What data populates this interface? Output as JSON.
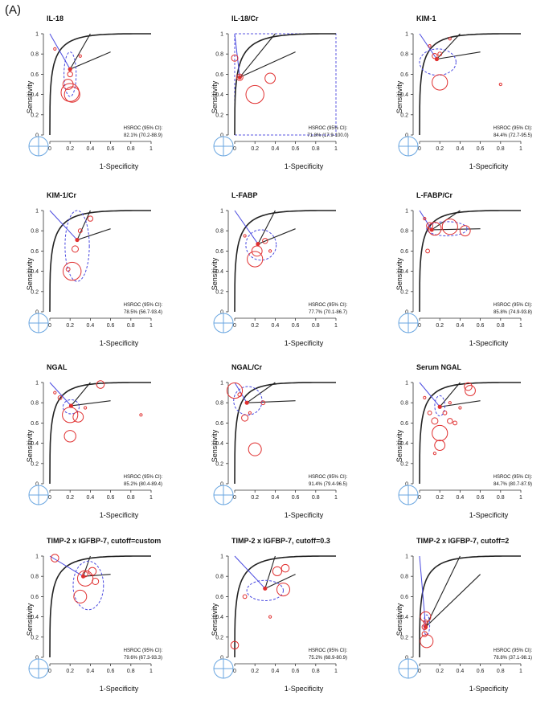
{
  "figure_label": "(A)",
  "axis_labels": {
    "x": "1-Specificity",
    "y": "Sensitivity"
  },
  "ticks": [
    "0",
    "0.2",
    "0.4",
    "0.6",
    "0.8",
    "1"
  ],
  "chart_data": [
    {
      "type": "scatter",
      "title": "IL-18",
      "xlabel": "1-Specificity",
      "ylabel": "Sensitivity",
      "hsroc_label": "HSROC (95% CI):",
      "hsroc_value": "82.1% (70.2-88.9)",
      "summary": [
        0.2,
        0.65
      ],
      "curve_k": 0.82,
      "conf": [
        0.2,
        0.6,
        0.06,
        0.22
      ],
      "pts": [
        [
          0.2,
          0.42,
          1.4
        ],
        [
          0.22,
          0.4,
          1.2
        ],
        [
          0.18,
          0.5,
          0.8
        ],
        [
          0.2,
          0.6,
          0.4
        ],
        [
          0.05,
          0.85,
          0.2
        ],
        [
          0.3,
          0.78,
          0.2
        ]
      ]
    },
    {
      "type": "scatter",
      "title": "IL-18/Cr",
      "xlabel": "1-Specificity",
      "ylabel": "Sensitivity",
      "hsroc_label": "HSROC (95% CI):",
      "hsroc_value": "71.8% (17.9-100.0)",
      "summary": [
        0.05,
        0.57
      ],
      "curve_k": 0.72,
      "box": true,
      "pts": [
        [
          0.2,
          0.4,
          1.4
        ],
        [
          0.35,
          0.56,
          0.8
        ],
        [
          0.0,
          0.76,
          0.5
        ],
        [
          0.05,
          0.57,
          0.5
        ]
      ]
    },
    {
      "type": "scatter",
      "title": "KIM-1",
      "xlabel": "1-Specificity",
      "ylabel": "Sensitivity",
      "hsroc_label": "HSROC (95% CI):",
      "hsroc_value": "84.4% (72.7-95.5)",
      "summary": [
        0.17,
        0.75
      ],
      "curve_k": 0.84,
      "conf": [
        0.18,
        0.72,
        0.18,
        0.13
      ],
      "pts": [
        [
          0.2,
          0.52,
          1.2
        ],
        [
          0.15,
          0.78,
          0.4
        ],
        [
          0.2,
          0.8,
          0.3
        ],
        [
          0.1,
          0.88,
          0.2
        ],
        [
          0.8,
          0.5,
          0.2
        ],
        [
          0.3,
          0.95,
          0.2
        ]
      ]
    },
    {
      "type": "scatter",
      "title": "KIM-1/Cr",
      "xlabel": "1-Specificity",
      "ylabel": "Sensitivity",
      "hsroc_label": "HSROC (95% CI):",
      "hsroc_value": "78.5% (56.7-93.4)",
      "summary": [
        0.27,
        0.71
      ],
      "curve_k": 0.78,
      "conf": [
        0.27,
        0.65,
        0.12,
        0.35
      ],
      "pts": [
        [
          0.22,
          0.4,
          1.4
        ],
        [
          0.25,
          0.62,
          0.5
        ],
        [
          0.4,
          0.92,
          0.4
        ],
        [
          0.18,
          0.42,
          0.3
        ],
        [
          0.3,
          0.8,
          0.3
        ]
      ]
    },
    {
      "type": "scatter",
      "title": "L-FABP",
      "xlabel": "1-Specificity",
      "ylabel": "Sensitivity",
      "hsroc_label": "HSROC (95% CI):",
      "hsroc_value": "77.7% (70.1-86.7)",
      "summary": [
        0.23,
        0.67
      ],
      "curve_k": 0.78,
      "conf": [
        0.26,
        0.66,
        0.15,
        0.15
      ],
      "pts": [
        [
          0.2,
          0.52,
          1.2
        ],
        [
          0.22,
          0.6,
          0.8
        ],
        [
          0.3,
          0.7,
          0.4
        ],
        [
          0.35,
          0.6,
          0.2
        ],
        [
          0.1,
          0.75,
          0.2
        ]
      ]
    },
    {
      "type": "scatter",
      "title": "L-FABP/Cr",
      "xlabel": "1-Specificity",
      "ylabel": "Sensitivity",
      "hsroc_label": "HSROC (95% CI):",
      "hsroc_value": "85.8% (74.9-93.8)",
      "summary": [
        0.12,
        0.81
      ],
      "curve_k": 0.86,
      "conf": [
        0.27,
        0.82,
        0.2,
        0.07
      ],
      "pts": [
        [
          0.3,
          0.84,
          1.2
        ],
        [
          0.15,
          0.82,
          1.0
        ],
        [
          0.45,
          0.8,
          0.8
        ],
        [
          0.1,
          0.85,
          0.5
        ],
        [
          0.08,
          0.6,
          0.3
        ],
        [
          0.05,
          0.92,
          0.2
        ]
      ]
    },
    {
      "type": "scatter",
      "title": "NGAL",
      "xlabel": "1-Specificity",
      "ylabel": "Sensitivity",
      "hsroc_label": "HSROC (95% CI):",
      "hsroc_value": "85.2% (80.4-89.4)",
      "summary": [
        0.21,
        0.77
      ],
      "curve_k": 0.85,
      "conf": [
        0.21,
        0.76,
        0.08,
        0.07
      ],
      "pts": [
        [
          0.2,
          0.68,
          1.2
        ],
        [
          0.2,
          0.47,
          0.9
        ],
        [
          0.28,
          0.66,
          0.8
        ],
        [
          0.5,
          0.98,
          0.6
        ],
        [
          0.1,
          0.85,
          0.3
        ],
        [
          0.35,
          0.75,
          0.2
        ],
        [
          0.9,
          0.68,
          0.2
        ],
        [
          0.05,
          0.9,
          0.2
        ]
      ]
    },
    {
      "type": "scatter",
      "title": "NGAL/Cr",
      "xlabel": "1-Specificity",
      "ylabel": "Sensitivity",
      "hsroc_label": "HSROC (95% CI):",
      "hsroc_value": "91.4% (79.4-96.5)",
      "summary": [
        0.12,
        0.8
      ],
      "curve_k": 0.91,
      "conf": [
        0.13,
        0.82,
        0.14,
        0.14
      ],
      "pts": [
        [
          0.0,
          0.92,
          1.2
        ],
        [
          0.2,
          0.34,
          1.0
        ],
        [
          0.1,
          0.65,
          0.5
        ],
        [
          0.28,
          0.8,
          0.3
        ],
        [
          0.05,
          0.88,
          0.3
        ],
        [
          0.15,
          0.7,
          0.2
        ]
      ]
    },
    {
      "type": "scatter",
      "title": "Serum NGAL",
      "xlabel": "1-Specificity",
      "ylabel": "Sensitivity",
      "hsroc_label": "HSROC (95% CI):",
      "hsroc_value": "84.7% (80.7-87.9)",
      "summary": [
        0.2,
        0.76
      ],
      "curve_k": 0.85,
      "conf": [
        0.2,
        0.77,
        0.05,
        0.1
      ],
      "pts": [
        [
          0.2,
          0.5,
          1.2
        ],
        [
          0.2,
          0.38,
          0.8
        ],
        [
          0.5,
          0.92,
          0.8
        ],
        [
          0.48,
          0.96,
          0.6
        ],
        [
          0.15,
          0.62,
          0.5
        ],
        [
          0.3,
          0.62,
          0.4
        ],
        [
          0.25,
          0.7,
          0.3
        ],
        [
          0.35,
          0.6,
          0.3
        ],
        [
          0.1,
          0.7,
          0.3
        ],
        [
          0.4,
          0.75,
          0.2
        ],
        [
          0.15,
          0.3,
          0.2
        ],
        [
          0.05,
          0.85,
          0.2
        ],
        [
          0.3,
          0.8,
          0.2
        ]
      ]
    },
    {
      "type": "scatter",
      "title": "TIMP-2 x IGFBP-7, cutoff=custom",
      "xlabel": "1-Specificity",
      "ylabel": "Sensitivity",
      "hsroc_label": "HSROC (95% CI):",
      "hsroc_value": "79.6% (67.3-93.3)",
      "summary": [
        0.33,
        0.8
      ],
      "curve_k": 0.8,
      "conf": [
        0.38,
        0.71,
        0.15,
        0.24
      ],
      "pts": [
        [
          0.35,
          0.78,
          1.2
        ],
        [
          0.3,
          0.6,
          1.0
        ],
        [
          0.42,
          0.85,
          0.6
        ],
        [
          0.45,
          0.75,
          0.5
        ],
        [
          0.05,
          0.98,
          0.6
        ],
        [
          0.35,
          0.82,
          0.4
        ]
      ]
    },
    {
      "type": "scatter",
      "title": "TIMP-2 x IGFBP-7, cutoff=0.3",
      "xlabel": "1-Specificity",
      "ylabel": "Sensitivity",
      "hsroc_label": "HSROC (95% CI):",
      "hsroc_value": "75.2% (68.9-80.9)",
      "summary": [
        0.3,
        0.68
      ],
      "curve_k": 0.75,
      "conf": [
        0.3,
        0.66,
        0.18,
        0.1
      ],
      "pts": [
        [
          0.48,
          0.67,
          1.0
        ],
        [
          0.42,
          0.85,
          0.7
        ],
        [
          0.5,
          0.88,
          0.6
        ],
        [
          0.0,
          0.12,
          0.6
        ],
        [
          0.1,
          0.6,
          0.3
        ],
        [
          0.35,
          0.4,
          0.2
        ]
      ]
    },
    {
      "type": "scatter",
      "title": "TIMP-2 x IGFBP-7, cutoff=2",
      "xlabel": "1-Specificity",
      "ylabel": "Sensitivity",
      "hsroc_label": "HSROC (95% CI):",
      "hsroc_value": "78.8% (37.1-98.1)",
      "summary": [
        0.06,
        0.3
      ],
      "curve_k": 0.79,
      "conf": [
        0.07,
        0.32,
        0.03,
        0.1
      ],
      "pts": [
        [
          0.07,
          0.16,
          1.0
        ],
        [
          0.06,
          0.4,
          0.8
        ],
        [
          0.05,
          0.3,
          0.4
        ],
        [
          0.05,
          0.23,
          0.4
        ],
        [
          0.06,
          0.35,
          0.3
        ]
      ]
    }
  ]
}
